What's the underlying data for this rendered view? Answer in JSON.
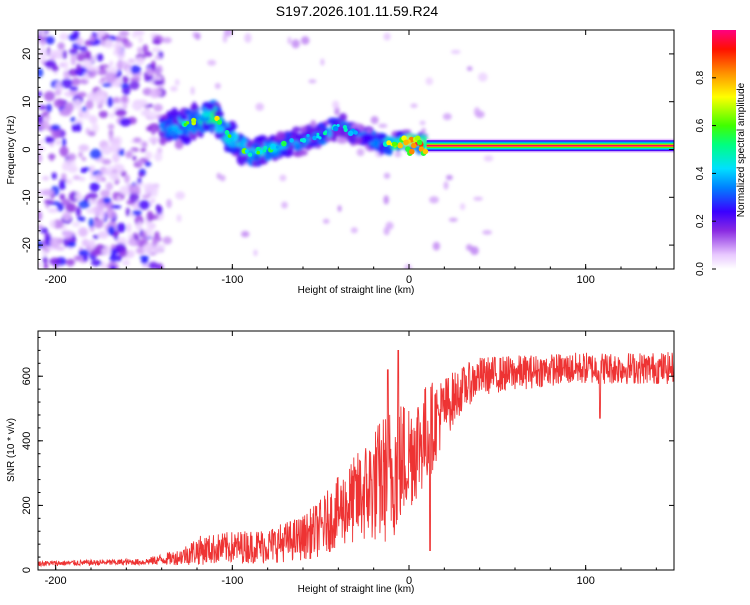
{
  "chart_data": [
    {
      "type": "heatmap",
      "title": "S197.2026.101.11.59.R24",
      "xlabel": "Height of straight line (km)",
      "ylabel": "Frequency (Hz)",
      "xlim": [
        -210,
        150
      ],
      "ylim": [
        -25,
        25
      ],
      "xticks": [
        -200,
        -100,
        0,
        100
      ],
      "yticks": [
        20,
        10,
        0,
        -10,
        -20
      ],
      "colorbar": {
        "label": "Normalized spectral amplitude",
        "range": [
          0,
          1
        ],
        "ticks": [
          "0.0",
          "0.2",
          "0.4",
          "0.6",
          "0.8"
        ],
        "tick_values": [
          0.0,
          0.2,
          0.4,
          0.6,
          0.8
        ]
      },
      "features": {
        "noise_region_x": [
          -210,
          -140
        ],
        "wavy_signal": [
          {
            "x": -140,
            "f": 4,
            "amp": 0.35
          },
          {
            "x": -130,
            "f": 5,
            "amp": 0.45
          },
          {
            "x": -120,
            "f": 6,
            "amp": 0.55
          },
          {
            "x": -110,
            "f": 7,
            "amp": 0.6
          },
          {
            "x": -100,
            "f": 2,
            "amp": 0.5
          },
          {
            "x": -90,
            "f": -1,
            "amp": 0.5
          },
          {
            "x": -80,
            "f": 0,
            "amp": 0.45
          },
          {
            "x": -70,
            "f": 1,
            "amp": 0.45
          },
          {
            "x": -60,
            "f": 2,
            "amp": 0.4
          },
          {
            "x": -50,
            "f": 3,
            "amp": 0.45
          },
          {
            "x": -40,
            "f": 5,
            "amp": 0.4
          },
          {
            "x": -30,
            "f": 3,
            "amp": 0.4
          },
          {
            "x": -20,
            "f": 2,
            "amp": 0.45
          },
          {
            "x": -10,
            "f": 1,
            "amp": 0.6
          },
          {
            "x": 0,
            "f": 2,
            "amp": 0.75
          },
          {
            "x": 10,
            "f": 1,
            "amp": 0.85
          }
        ],
        "carrier_line": {
          "x_start": 10,
          "x_end": 150,
          "f": 0.8,
          "amp": 0.98
        }
      }
    },
    {
      "type": "line",
      "xlabel": "Height of straight line (km)",
      "ylabel": "SNR (10 * v/v)",
      "xlim": [
        -210,
        150
      ],
      "ylim": [
        0,
        740
      ],
      "xticks": [
        -200,
        -100,
        0,
        100
      ],
      "yticks": [
        0,
        200,
        400,
        600
      ],
      "series": [
        {
          "name": "SNR",
          "color": "#ee3333",
          "envelope_x": [
            -210,
            -150,
            -130,
            -120,
            -100,
            -80,
            -60,
            -50,
            -40,
            -30,
            -20,
            -10,
            0,
            10,
            20,
            30,
            40,
            60,
            80,
            100,
            120,
            150
          ],
          "envelope_mean": [
            20,
            25,
            40,
            60,
            70,
            75,
            100,
            130,
            180,
            220,
            260,
            300,
            360,
            420,
            500,
            560,
            600,
            610,
            620,
            625,
            625,
            625
          ],
          "envelope_spread": [
            8,
            10,
            25,
            45,
            50,
            55,
            70,
            90,
            110,
            140,
            180,
            220,
            180,
            160,
            100,
            70,
            60,
            55,
            50,
            50,
            50,
            50
          ],
          "spikes": [
            {
              "x": -12,
              "y": 620
            },
            {
              "x": -6,
              "y": 680
            },
            {
              "x": 12,
              "y": 60
            },
            {
              "x": 108,
              "y": 470
            }
          ]
        }
      ]
    }
  ],
  "colors": {
    "axis": "#000000",
    "line": "#ee3333"
  }
}
